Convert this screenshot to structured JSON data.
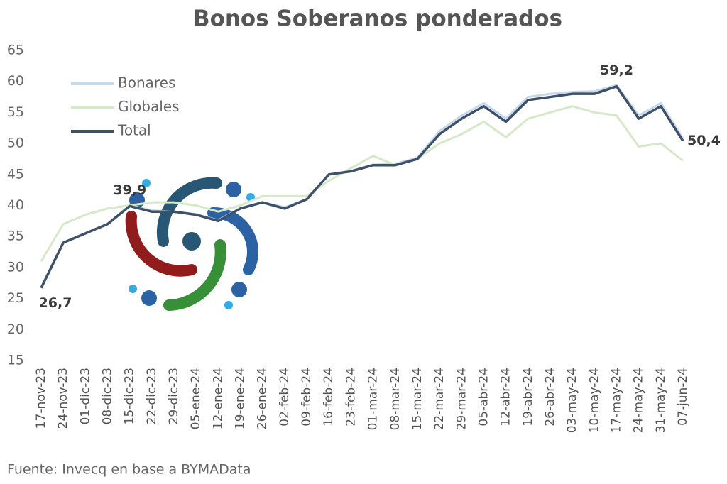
{
  "chart_data": {
    "type": "line",
    "title": "Bonos Soberanos ponderados",
    "source": "Fuente: Invecq en base a BYMAData",
    "categories": [
      "17-nov-23",
      "24-nov-23",
      "01-dic-23",
      "08-dic-23",
      "15-dic-23",
      "22-dic-23",
      "29-dic-23",
      "05-ene-24",
      "12-ene-24",
      "19-ene-24",
      "26-ene-24",
      "02-feb-24",
      "09-feb-24",
      "16-feb-24",
      "23-feb-24",
      "01-mar-24",
      "08-mar-24",
      "15-mar-24",
      "22-mar-24",
      "29-mar-24",
      "05-abr-24",
      "12-abr-24",
      "19-abr-24",
      "26-abr-24",
      "03-may-24",
      "10-may-24",
      "17-may-24",
      "24-may-24",
      "31-may-24",
      "07-jun-24"
    ],
    "series": [
      {
        "name": "Bonares",
        "color": "#c5d9ee",
        "values": [
          26.8,
          34,
          35.5,
          37,
          40,
          39.2,
          39,
          38.6,
          37.6,
          39.6,
          40.5,
          39.7,
          41,
          45,
          45.6,
          46.6,
          46.7,
          47.7,
          52,
          54.5,
          56.5,
          54,
          57.5,
          58,
          58.3,
          58.4,
          59.4,
          54.5,
          56.5,
          50.8
        ]
      },
      {
        "name": "Globales",
        "color": "#d5e8c8",
        "values": [
          31,
          37,
          38.5,
          39.5,
          40,
          40.5,
          40.5,
          40,
          39,
          40,
          41.5,
          41.5,
          41.5,
          44,
          46,
          48,
          46.5,
          47.5,
          50,
          51.5,
          53.5,
          51,
          54,
          55,
          56,
          55,
          54.5,
          49.5,
          50,
          47.2
        ]
      },
      {
        "name": "Total",
        "color": "#3e5168",
        "values": [
          26.7,
          34,
          35.5,
          37,
          39.9,
          39,
          39,
          38.5,
          37.5,
          39.5,
          40.5,
          39.5,
          41,
          45,
          45.5,
          46.5,
          46.5,
          47.5,
          51.5,
          54,
          56,
          53.5,
          57,
          57.5,
          58,
          58,
          59.2,
          54,
          56,
          50.4
        ],
        "value_labels": [
          "26,7",
          null,
          null,
          null,
          "39,9",
          null,
          null,
          null,
          null,
          null,
          null,
          null,
          null,
          null,
          null,
          null,
          null,
          null,
          null,
          null,
          null,
          null,
          null,
          null,
          null,
          null,
          "59,2",
          null,
          null,
          "50,4"
        ]
      }
    ],
    "ylim": [
      15,
      65
    ],
    "yticks": [
      15,
      20,
      25,
      30,
      35,
      40,
      45,
      50,
      55,
      60,
      65
    ],
    "grid": false,
    "legend": "top-left"
  }
}
